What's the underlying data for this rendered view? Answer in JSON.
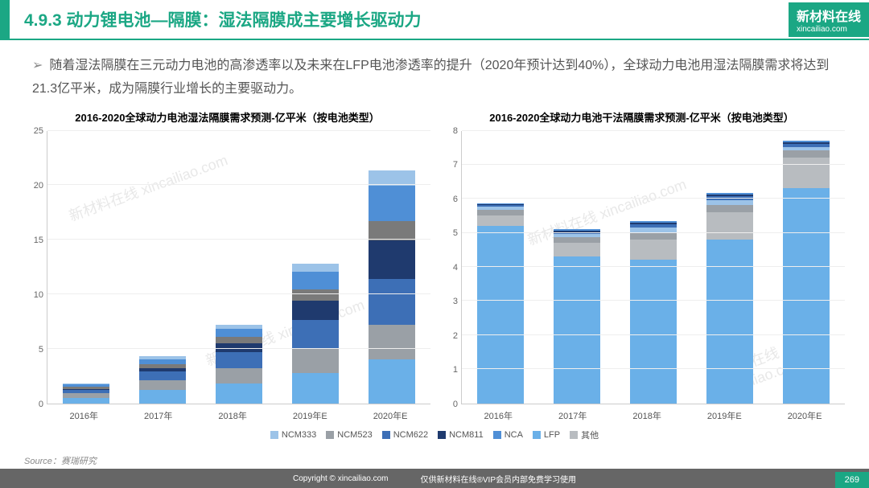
{
  "header": {
    "title": "4.9.3 动力锂电池—隔膜：湿法隔膜成主要增长驱动力",
    "logo_main": "新材料在线",
    "logo_sub": "xincailiao.com"
  },
  "desc": "随着湿法隔膜在三元动力电池的高渗透率以及未来在LFP电池渗透率的提升（2020年预计达到40%），全球动力电池用湿法隔膜需求将达到21.3亿平米，成为隔膜行业增长的主要驱动力。",
  "chart1": {
    "title": "2016-2020全球动力电池湿法隔膜需求预测-亿平米（按电池类型）",
    "type": "stacked-bar",
    "ylim": [
      0,
      25
    ],
    "ytick_step": 5,
    "categories": [
      "2016年",
      "2017年",
      "2018年",
      "2019年E",
      "2020年E"
    ],
    "series": [
      "NCM333",
      "NCM523",
      "NCM622",
      "NCM811",
      "NCA",
      "LFP",
      "其他"
    ],
    "colors": {
      "NCM333": "#6ab0e8",
      "NCM523": "#9aa0a6",
      "NCM622": "#3d6fb6",
      "NCM811": "#1f3a6e",
      "NCA": "#7a7a7a",
      "LFP": "#4f8fd6",
      "其他": "#9cc3e8"
    },
    "data": [
      {
        "NCM333": 0.5,
        "NCM523": 0.4,
        "NCM622": 0.3,
        "NCM811": 0.1,
        "NCA": 0.2,
        "LFP": 0.2,
        "其他": 0.1
      },
      {
        "NCM333": 1.2,
        "NCM523": 0.9,
        "NCM622": 0.8,
        "NCM811": 0.3,
        "NCA": 0.4,
        "LFP": 0.4,
        "其他": 0.3
      },
      {
        "NCM333": 1.8,
        "NCM523": 1.4,
        "NCM622": 1.5,
        "NCM811": 0.8,
        "NCA": 0.6,
        "LFP": 0.7,
        "其他": 0.4
      },
      {
        "NCM333": 2.8,
        "NCM523": 2.2,
        "NCM622": 2.6,
        "NCM811": 1.8,
        "NCA": 1.0,
        "LFP": 1.6,
        "其他": 0.8
      },
      {
        "NCM333": 4.0,
        "NCM523": 3.2,
        "NCM622": 4.2,
        "NCM811": 3.5,
        "NCA": 1.8,
        "LFP": 3.2,
        "其他": 1.4
      }
    ]
  },
  "chart2": {
    "title": "2016-2020全球动力电池干法隔膜需求预测-亿平米（按电池类型）",
    "type": "stacked-bar",
    "ylim": [
      0,
      8
    ],
    "ytick_step": 1,
    "categories": [
      "2016年",
      "2017年",
      "2018年",
      "2019年E",
      "2020年E"
    ],
    "series": [
      "LFP",
      "其他",
      "NCM523",
      "NCM333",
      "NCM622",
      "NCM811",
      "NCA"
    ],
    "colors": {
      "LFP": "#6ab0e8",
      "其他": "#b8bcc0",
      "NCM523": "#9aa0a6",
      "NCM333": "#9cc3e8",
      "NCM622": "#3d6fb6",
      "NCM811": "#1f3a6e",
      "NCA": "#4f8fd6"
    },
    "data": [
      {
        "LFP": 5.2,
        "其他": 0.3,
        "NCM523": 0.15,
        "NCM333": 0.1,
        "NCM622": 0.05,
        "NCM811": 0.03,
        "NCA": 0.02
      },
      {
        "LFP": 4.3,
        "其他": 0.4,
        "NCM523": 0.15,
        "NCM333": 0.1,
        "NCM622": 0.05,
        "NCM811": 0.05,
        "NCA": 0.05
      },
      {
        "LFP": 4.2,
        "其他": 0.6,
        "NCM523": 0.2,
        "NCM333": 0.15,
        "NCM622": 0.08,
        "NCM811": 0.05,
        "NCA": 0.05
      },
      {
        "LFP": 4.8,
        "其他": 0.8,
        "NCM523": 0.2,
        "NCM333": 0.15,
        "NCM622": 0.1,
        "NCM811": 0.05,
        "NCA": 0.05
      },
      {
        "LFP": 6.3,
        "其他": 0.9,
        "NCM523": 0.2,
        "NCM333": 0.1,
        "NCM622": 0.08,
        "NCM811": 0.05,
        "NCA": 0.05
      }
    ]
  },
  "footer": {
    "source": "Source：赛瑞研究",
    "copyright": "Copyright © xincailiao.com",
    "note": "仅供新材料在线®VIP会员内部免费学习使用",
    "page": "269"
  },
  "style": {
    "accent": "#1ba784",
    "grid_color": "#eeeeee",
    "axis_color": "#cccccc",
    "text_color": "#555555",
    "title_fontsize": 21,
    "desc_fontsize": 16,
    "chart_title_fontsize": 13,
    "tick_fontsize": 11
  },
  "watermark": "新材料在线 xincailiao.com"
}
